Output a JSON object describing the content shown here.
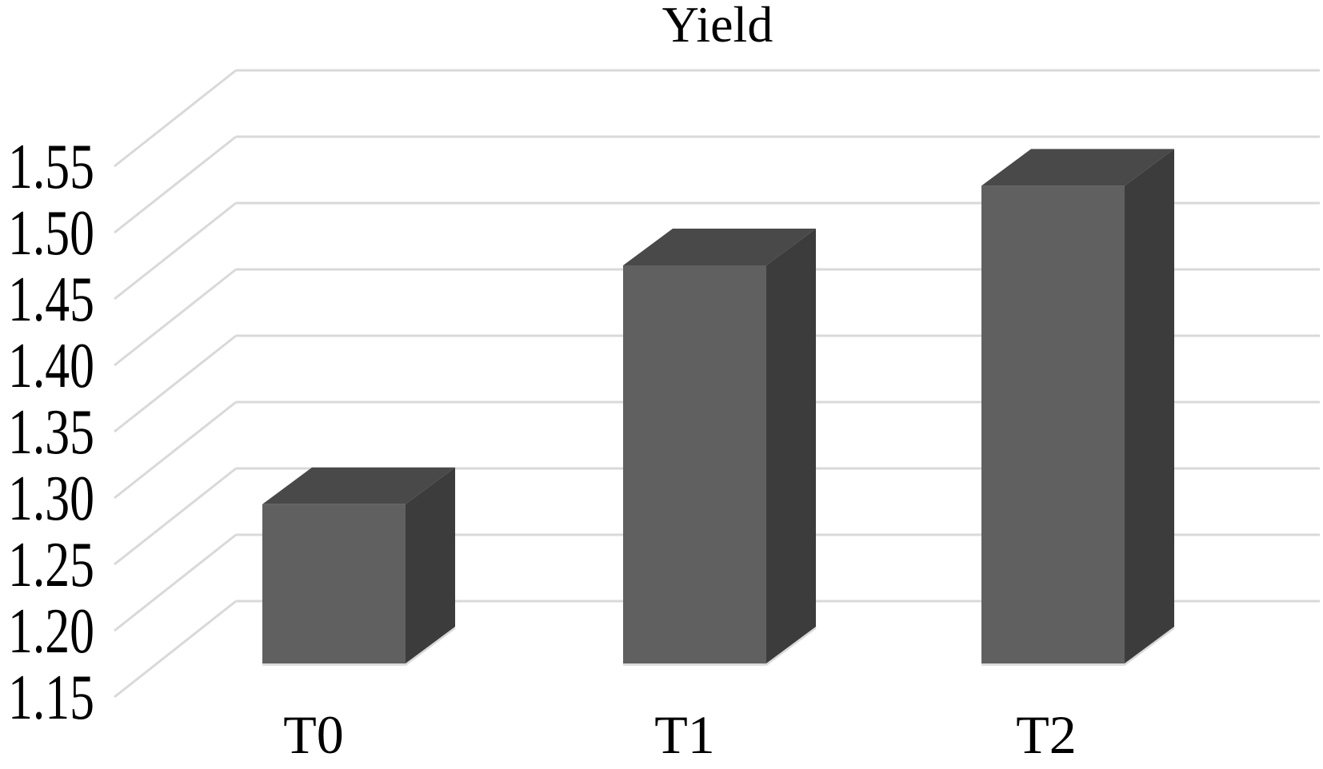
{
  "chart_data": {
    "type": "bar",
    "variant": "3d-column",
    "title": "Yield",
    "categories": [
      "T0",
      "T1",
      "T2"
    ],
    "values": [
      1.27,
      1.45,
      1.51
    ],
    "series": [
      {
        "name": "Yield",
        "values": [
          1.27,
          1.45,
          1.51
        ]
      }
    ],
    "xlabel": "",
    "ylabel": "",
    "ylim": [
      1.15,
      1.55
    ],
    "ytick_step": 0.05,
    "ytick_labels": [
      "1.55",
      "1.50",
      "1.45",
      "1.40",
      "1.35",
      "1.30",
      "1.25",
      "1.20",
      "1.15"
    ],
    "grid": true,
    "legend": false,
    "colors": {
      "bar_front": "#606060",
      "bar_top": "#494949",
      "bar_side": "#3c3c3c",
      "gridline": "#d9d9d9",
      "text": "#000000",
      "background": "#ffffff"
    }
  }
}
